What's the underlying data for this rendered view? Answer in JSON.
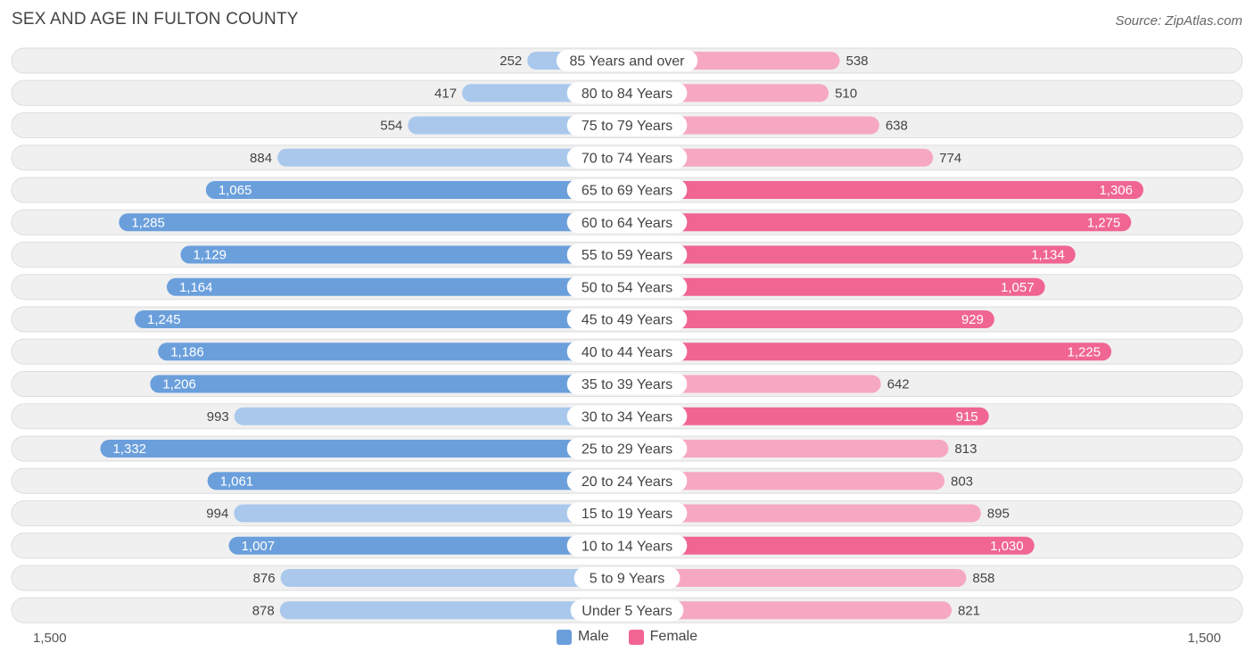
{
  "header": {
    "title": "SEX AND AGE IN FULTON COUNTY",
    "source": "Source: ZipAtlas.com"
  },
  "legend": {
    "male_label": "Male",
    "female_label": "Female"
  },
  "axis": {
    "left_label": "1,500",
    "right_label": "1,500"
  },
  "colors": {
    "male_dark": "#6a9fdc",
    "male_light": "#a9c8ec",
    "female_dark": "#f06592",
    "female_light": "#f6a8c2",
    "row_bg": "#f0f0f0",
    "row_border": "#dedede"
  },
  "chart_data": {
    "type": "bar",
    "orientation": "horizontal-butterfly",
    "title": "SEX AND AGE IN FULTON COUNTY",
    "categories": [
      "85 Years and over",
      "80 to 84 Years",
      "75 to 79 Years",
      "70 to 74 Years",
      "65 to 69 Years",
      "60 to 64 Years",
      "55 to 59 Years",
      "50 to 54 Years",
      "45 to 49 Years",
      "40 to 44 Years",
      "35 to 39 Years",
      "30 to 34 Years",
      "25 to 29 Years",
      "20 to 24 Years",
      "15 to 19 Years",
      "10 to 14 Years",
      "5 to 9 Years",
      "Under 5 Years"
    ],
    "series": [
      {
        "name": "Male",
        "values": [
          252,
          417,
          554,
          884,
          1065,
          1285,
          1129,
          1164,
          1245,
          1186,
          1206,
          993,
          1332,
          1061,
          994,
          1007,
          876,
          878
        ],
        "labels": [
          "252",
          "417",
          "554",
          "884",
          "1,065",
          "1,285",
          "1,129",
          "1,164",
          "1,245",
          "1,186",
          "1,206",
          "993",
          "1,332",
          "1,061",
          "994",
          "1,007",
          "876",
          "878"
        ]
      },
      {
        "name": "Female",
        "values": [
          538,
          510,
          638,
          774,
          1306,
          1275,
          1134,
          1057,
          929,
          1225,
          642,
          915,
          813,
          803,
          895,
          1030,
          858,
          821
        ],
        "labels": [
          "538",
          "510",
          "638",
          "774",
          "1,306",
          "1,275",
          "1,134",
          "1,057",
          "929",
          "1,225",
          "642",
          "915",
          "813",
          "803",
          "895",
          "1,030",
          "858",
          "821"
        ]
      }
    ],
    "xlim": [
      -1500,
      1500
    ],
    "legend_position": "bottom-center"
  }
}
